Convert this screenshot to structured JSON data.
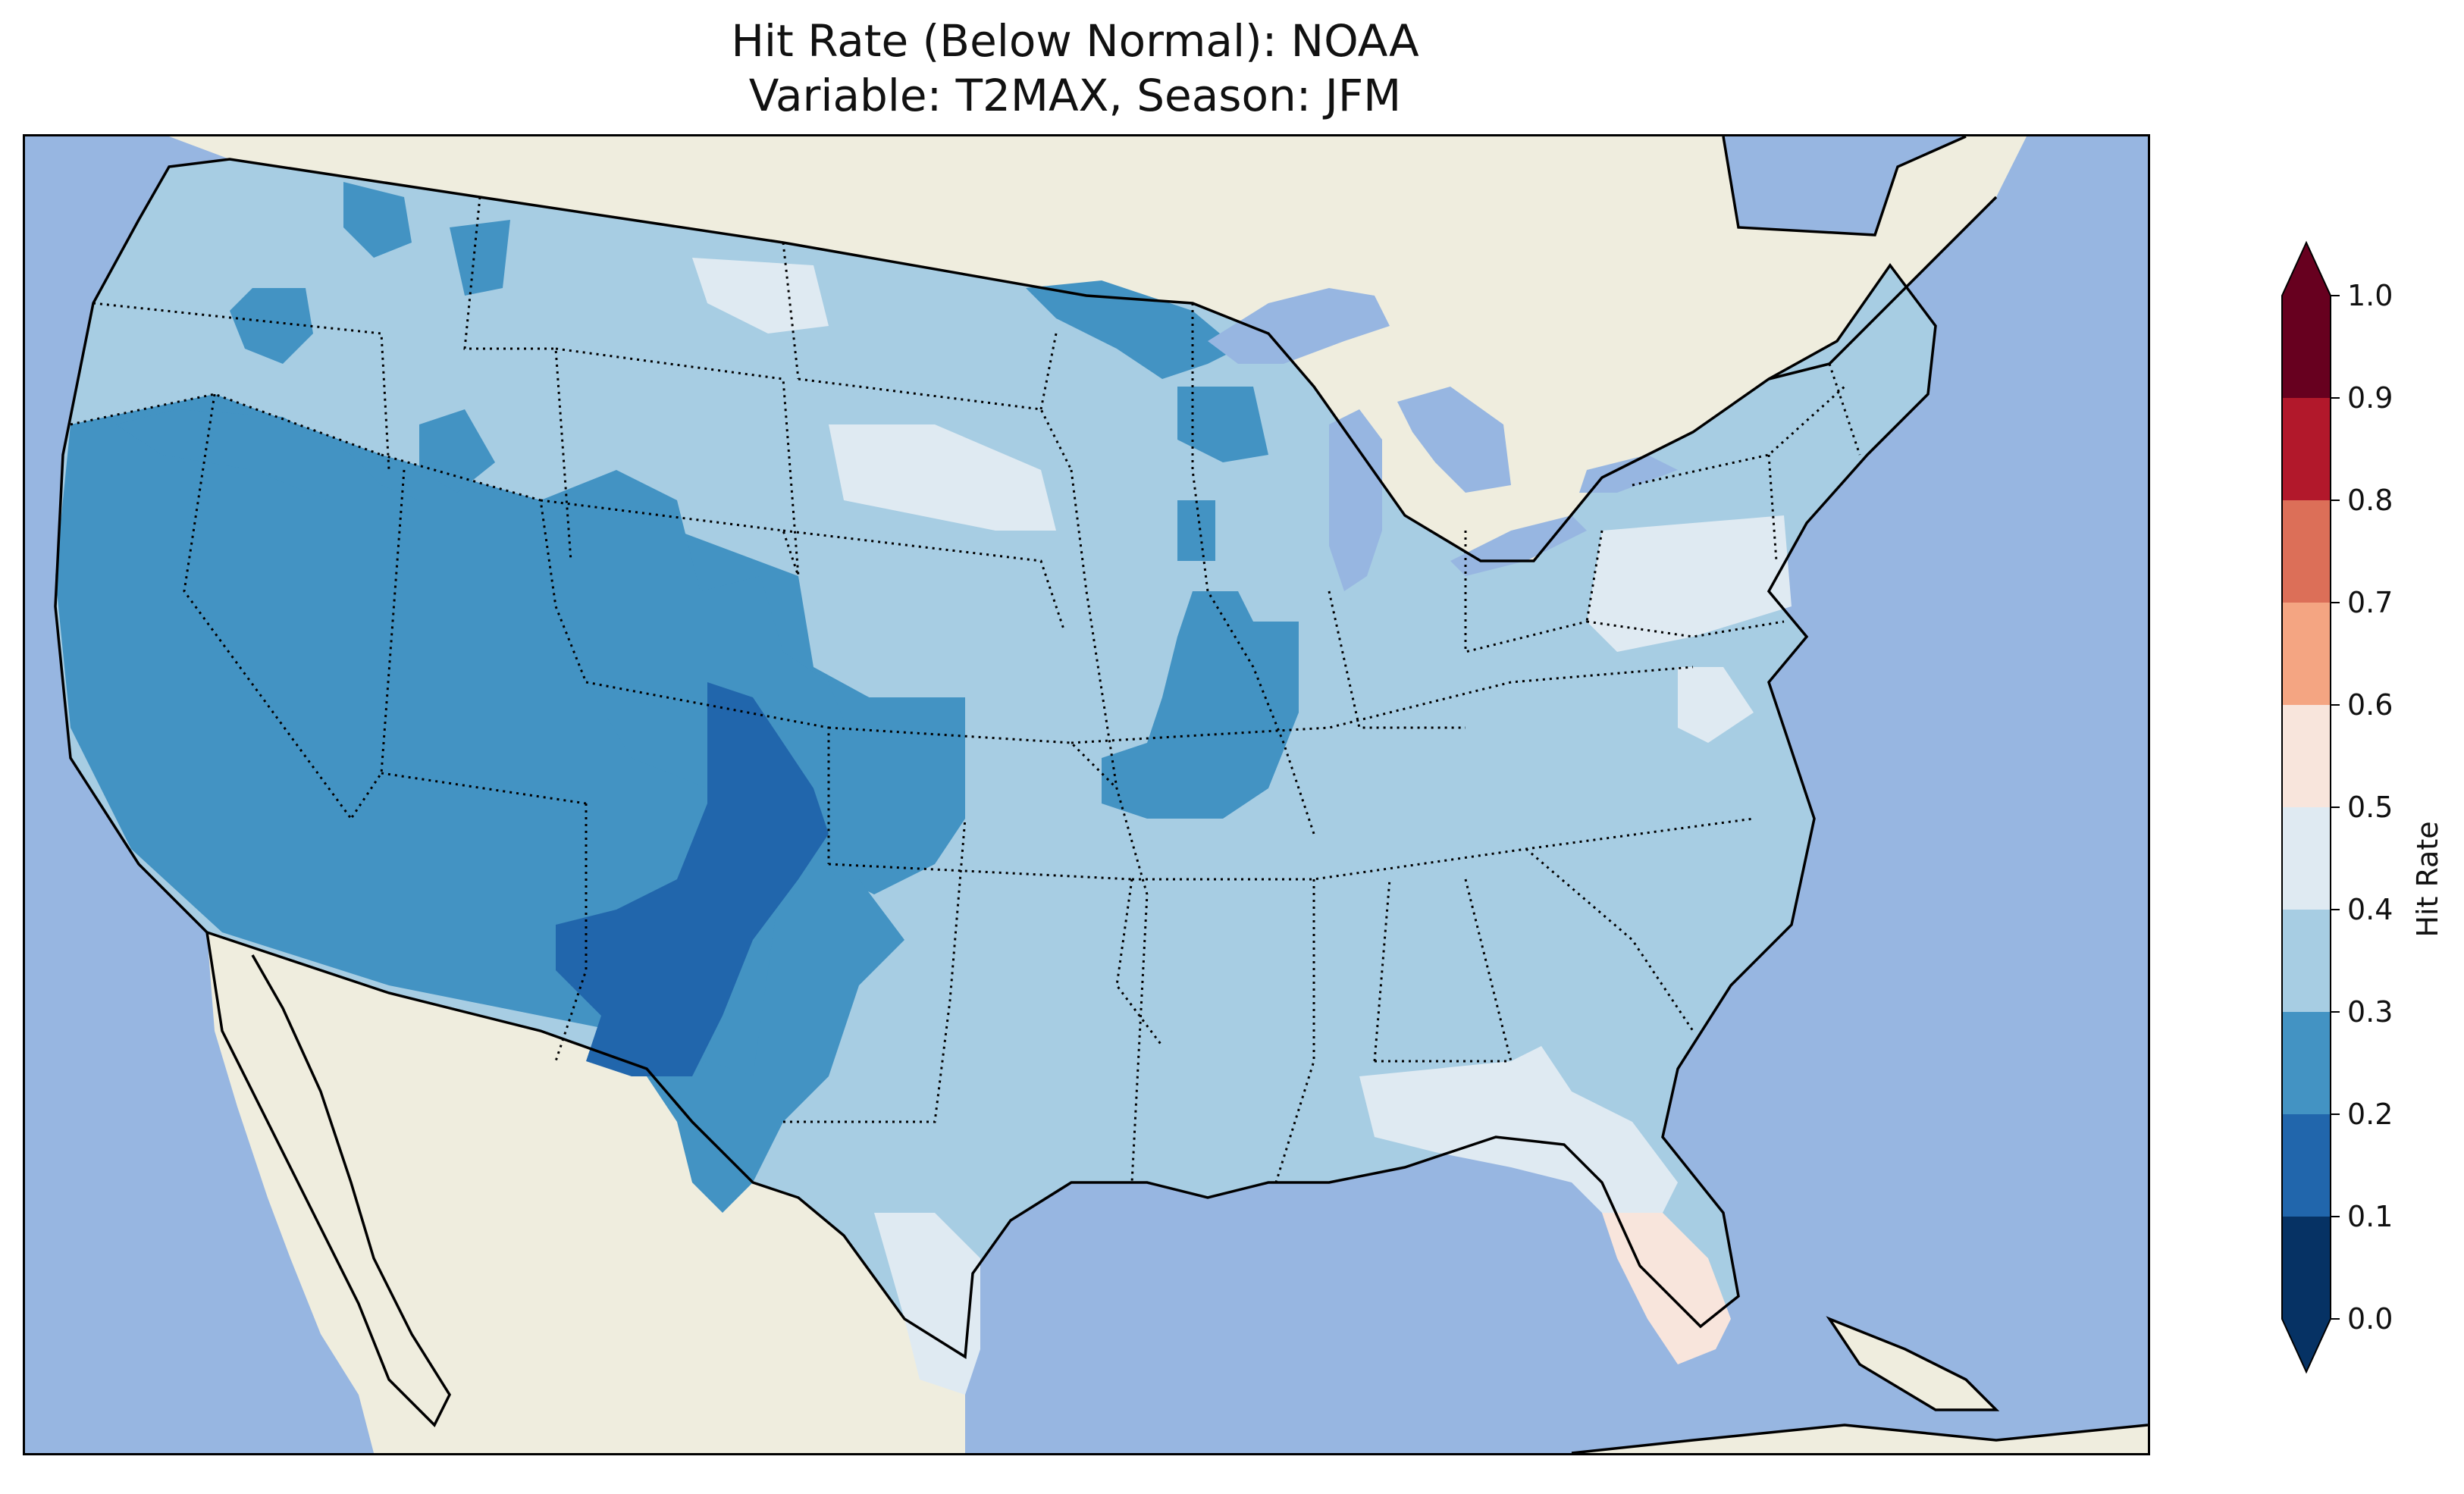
{
  "title": {
    "line1": "Hit Rate (Below Normal): NOAA",
    "line2": "Variable: T2MAX, Season: JFM"
  },
  "colors": {
    "ocean": "#97b6e1",
    "land": "#efedde",
    "lakes": "#97b6e1",
    "outline": "#000000"
  },
  "colorbar": {
    "label": "Hit Rate",
    "ticks": [
      "0.0",
      "0.1",
      "0.2",
      "0.3",
      "0.4",
      "0.5",
      "0.6",
      "0.7",
      "0.8",
      "0.9",
      "1.0"
    ],
    "bins": [
      {
        "range": [
          0.0,
          0.1
        ],
        "color": "#063264"
      },
      {
        "range": [
          0.1,
          0.2
        ],
        "color": "#2166ac"
      },
      {
        "range": [
          0.2,
          0.3
        ],
        "color": "#4393c3"
      },
      {
        "range": [
          0.3,
          0.4
        ],
        "color": "#a7cde3"
      },
      {
        "range": [
          0.4,
          0.5
        ],
        "color": "#dfeaf2"
      },
      {
        "range": [
          0.5,
          0.6
        ],
        "color": "#f8e5dc"
      },
      {
        "range": [
          0.6,
          0.7
        ],
        "color": "#f4a582"
      },
      {
        "range": [
          0.7,
          0.8
        ],
        "color": "#dc6f58"
      },
      {
        "range": [
          0.8,
          0.9
        ],
        "color": "#b2182b"
      },
      {
        "range": [
          0.9,
          1.0
        ],
        "color": "#67001f"
      }
    ],
    "extend": "both"
  },
  "hit_rate_regions": [
    {
      "name": "conus-base",
      "value": 0.35
    },
    {
      "name": "southwest-california-nevada-arizona",
      "value": 0.25
    },
    {
      "name": "great-basin-utah",
      "value": 0.25
    },
    {
      "name": "colorado-new-mexico",
      "value": 0.25
    },
    {
      "name": "new-mexico-core",
      "value": 0.15
    },
    {
      "name": "colorado-east-core",
      "value": 0.15
    },
    {
      "name": "west-texas",
      "value": 0.25
    },
    {
      "name": "kansas-oklahoma-west",
      "value": 0.25
    },
    {
      "name": "wyoming-east",
      "value": 0.25
    },
    {
      "name": "oregon-south",
      "value": 0.25
    },
    {
      "name": "washington-patches",
      "value": 0.25
    },
    {
      "name": "minnesota-north",
      "value": 0.25
    },
    {
      "name": "wisconsin-patch",
      "value": 0.25
    },
    {
      "name": "iowa-illinois-missouri",
      "value": 0.25
    },
    {
      "name": "south-dakota-west",
      "value": 0.45
    },
    {
      "name": "montana-northeast",
      "value": 0.45
    },
    {
      "name": "pennsylvania",
      "value": 0.45
    },
    {
      "name": "virginia-west",
      "value": 0.45
    },
    {
      "name": "south-texas",
      "value": 0.45
    },
    {
      "name": "gulf-coast-georgia",
      "value": 0.45
    },
    {
      "name": "florida-peninsula",
      "value": 0.55
    }
  ]
}
